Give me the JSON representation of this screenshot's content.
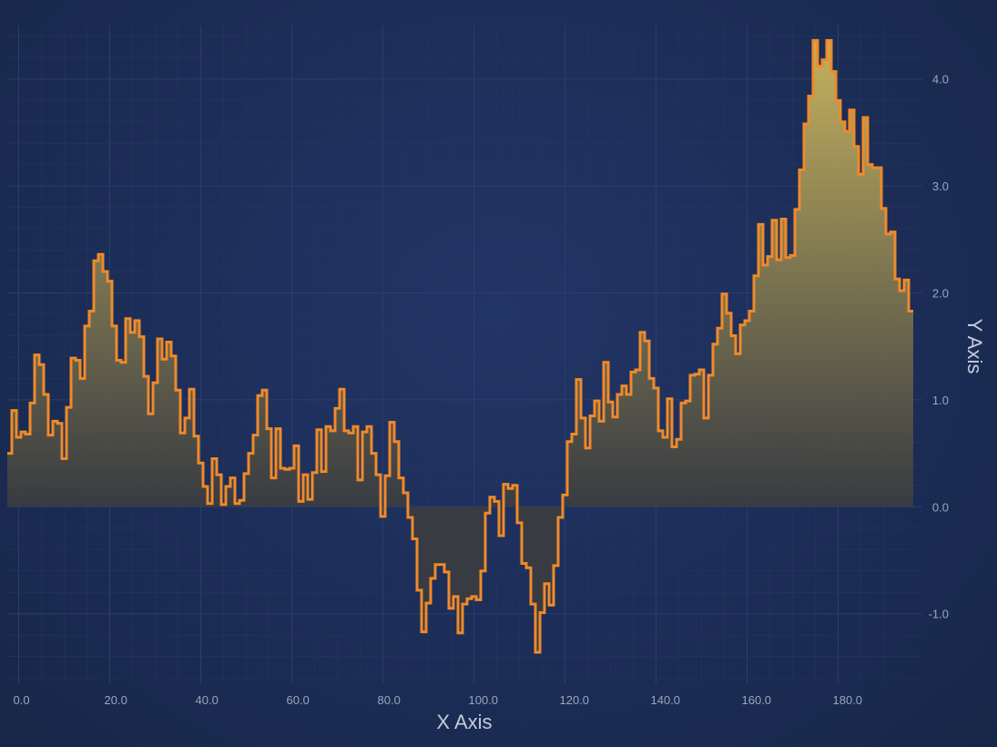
{
  "chart_data": {
    "type": "area",
    "style": "step-line with gradient fill",
    "xlabel": "X Axis",
    "ylabel": "Y Axis",
    "xlim": [
      -2.5,
      198.5
    ],
    "ylim": [
      -1.65,
      4.5
    ],
    "x_ticks": [
      "0.0",
      "20.0",
      "40.0",
      "60.0",
      "80.0",
      "100.0",
      "120.0",
      "140.0",
      "160.0",
      "180.0"
    ],
    "y_ticks": [
      "-1.0",
      "0.0",
      "1.0",
      "2.0",
      "3.0",
      "4.0"
    ],
    "grid": true,
    "legend": "none",
    "colors": {
      "line": "#ef8a2a",
      "fill_top": "#c8b45f",
      "fill_bottom": "#3a3c40"
    },
    "series": [
      {
        "x_start": -2.5,
        "x_step": 1,
        "values": [
          0.5,
          0.9,
          0.65,
          0.7,
          0.68,
          0.97,
          1.42,
          1.33,
          1.05,
          0.67,
          0.8,
          0.78,
          0.45,
          0.93,
          1.39,
          1.37,
          1.2,
          1.69,
          1.83,
          2.3,
          2.36,
          2.2,
          2.11,
          1.69,
          1.37,
          1.35,
          1.76,
          1.63,
          1.74,
          1.59,
          1.22,
          0.87,
          1.16,
          1.57,
          1.38,
          1.54,
          1.41,
          1.09,
          0.69,
          0.83,
          1.1,
          0.66,
          0.41,
          0.19,
          0.03,
          0.45,
          0.3,
          0.02,
          0.19,
          0.27,
          0.03,
          0.06,
          0.31,
          0.5,
          0.67,
          1.04,
          1.09,
          0.73,
          0.27,
          0.73,
          0.36,
          0.35,
          0.36,
          0.57,
          0.05,
          0.3,
          0.07,
          0.32,
          0.72,
          0.33,
          0.75,
          0.71,
          0.92,
          1.1,
          0.71,
          0.69,
          0.75,
          0.25,
          0.7,
          0.75,
          0.5,
          0.3,
          -0.09,
          0.29,
          0.79,
          0.61,
          0.27,
          0.13,
          -0.1,
          -0.3,
          -0.78,
          -1.17,
          -0.9,
          -0.67,
          -0.54,
          -0.54,
          -0.61,
          -0.95,
          -0.84,
          -1.18,
          -0.91,
          -0.86,
          -0.84,
          -0.87,
          -0.6,
          -0.06,
          0.09,
          0.05,
          -0.27,
          0.21,
          0.17,
          0.2,
          -0.15,
          -0.53,
          -0.57,
          -0.91,
          -1.36,
          -0.99,
          -0.72,
          -0.92,
          -0.55,
          -0.1,
          0.11,
          0.61,
          0.68,
          1.19,
          0.83,
          0.55,
          0.85,
          0.99,
          0.8,
          1.35,
          0.98,
          0.84,
          1.05,
          1.13,
          1.05,
          1.26,
          1.28,
          1.63,
          1.55,
          1.2,
          1.11,
          0.71,
          0.65,
          1.01,
          0.56,
          0.63,
          0.97,
          0.99,
          1.23,
          1.24,
          1.28,
          0.83,
          1.23,
          1.52,
          1.67,
          1.99,
          1.81,
          1.6,
          1.43,
          1.7,
          1.74,
          1.83,
          2.16,
          2.64,
          2.26,
          2.34,
          2.68,
          2.31,
          2.69,
          2.33,
          2.35,
          2.78,
          3.15,
          3.58,
          3.84,
          4.36,
          4.12,
          4.18,
          4.36,
          4.07,
          3.8,
          3.6,
          3.51,
          3.71,
          3.37,
          3.11,
          3.64,
          3.2,
          3.17,
          3.17,
          2.79,
          2.55,
          2.57,
          2.13,
          2.02,
          2.12,
          1.83
        ]
      }
    ]
  }
}
